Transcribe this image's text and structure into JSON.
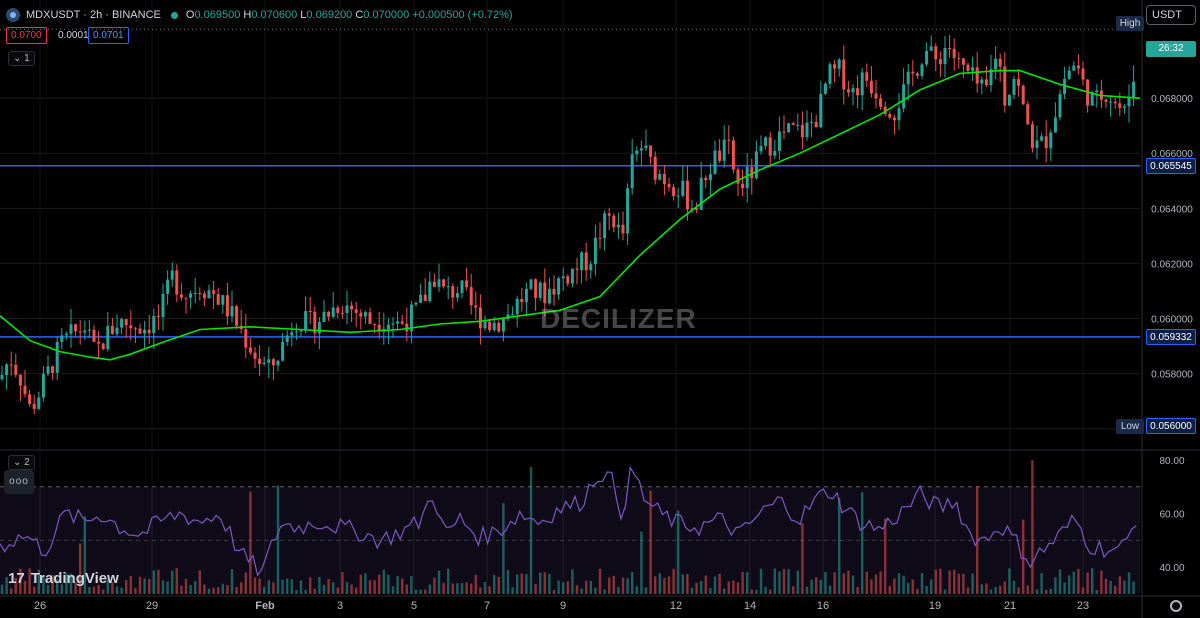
{
  "header": {
    "title": "MDXUSDT · 2h · BINANCE",
    "ohlc": {
      "o_label": "O",
      "o": "0.069500",
      "h_label": "H",
      "h": "0.070600",
      "l_label": "L",
      "l": "0.069200",
      "c_label": "C",
      "c": "0.070000",
      "change": "+0.000500 (+0.72%)"
    },
    "bid": "0.0700",
    "spread": "0.0001",
    "ask": "0.0701",
    "main_pane_badge": "1",
    "rsi_pane_badge": "2",
    "more_label": "ooo"
  },
  "toolbar": {
    "currency": "USDT"
  },
  "axis": {
    "high_label": "High",
    "low_label": "Low",
    "low_value": "0.056000",
    "countdown": "26:32",
    "level_upper": "0.065545",
    "level_lower": "0.059332"
  },
  "watermark": "DECILIZER",
  "branding": {
    "name": "TradingView",
    "mark": "17"
  },
  "colors": {
    "up": "#26a69a",
    "down": "#ef5350",
    "ma": "#00e600",
    "rsi": "#7e57c2",
    "level": "#2962ff",
    "background": "#000000"
  },
  "chart_data": {
    "type": "candlestick",
    "symbol": "MDXUSDT",
    "interval": "2h",
    "price_axis": {
      "ticks": [
        "0.068000",
        "0.066000",
        "0.064000",
        "0.062000",
        "0.060000",
        "0.058000",
        "0.056000"
      ],
      "range": [
        0.0553,
        0.0712
      ]
    },
    "x_ticks": [
      "26",
      "29",
      "Feb",
      "3",
      "5",
      "7",
      "9",
      "12",
      "14",
      "16",
      "19",
      "21",
      "23"
    ],
    "session_high": 0.0705,
    "session_low": 0.056,
    "horizontal_levels": [
      0.065545,
      0.059332
    ],
    "price_path": [
      [
        0,
        0.0578
      ],
      [
        10,
        0.0586
      ],
      [
        20,
        0.0579
      ],
      [
        30,
        0.0567
      ],
      [
        38,
        0.0572
      ],
      [
        50,
        0.0582
      ],
      [
        62,
        0.0591
      ],
      [
        72,
        0.0594
      ],
      [
        85,
        0.0597
      ],
      [
        95,
        0.0587
      ],
      [
        105,
        0.0593
      ],
      [
        118,
        0.0599
      ],
      [
        130,
        0.0598
      ],
      [
        145,
        0.0597
      ],
      [
        160,
        0.0601
      ],
      [
        172,
        0.0615
      ],
      [
        185,
        0.0609
      ],
      [
        200,
        0.0612
      ],
      [
        215,
        0.0609
      ],
      [
        232,
        0.0601
      ],
      [
        245,
        0.0593
      ],
      [
        258,
        0.0585
      ],
      [
        270,
        0.0581
      ],
      [
        282,
        0.059
      ],
      [
        295,
        0.06
      ],
      [
        310,
        0.0598
      ],
      [
        325,
        0.0601
      ],
      [
        340,
        0.0606
      ],
      [
        355,
        0.0603
      ],
      [
        370,
        0.0599
      ],
      [
        385,
        0.06
      ],
      [
        400,
        0.0598
      ],
      [
        415,
        0.0602
      ],
      [
        425,
        0.0608
      ],
      [
        433,
        0.0616
      ],
      [
        445,
        0.0609
      ],
      [
        460,
        0.0611
      ],
      [
        475,
        0.0602
      ],
      [
        490,
        0.0598
      ],
      [
        505,
        0.06
      ],
      [
        515,
        0.0605
      ],
      [
        530,
        0.061
      ],
      [
        545,
        0.0609
      ],
      [
        560,
        0.0614
      ],
      [
        575,
        0.0618
      ],
      [
        590,
        0.0622
      ],
      [
        602,
        0.0633
      ],
      [
        612,
        0.0638
      ],
      [
        622,
        0.0628
      ],
      [
        632,
        0.0657
      ],
      [
        642,
        0.0663
      ],
      [
        652,
        0.0655
      ],
      [
        665,
        0.0651
      ],
      [
        680,
        0.0647
      ],
      [
        695,
        0.064
      ],
      [
        705,
        0.0652
      ],
      [
        715,
        0.0658
      ],
      [
        728,
        0.0662
      ],
      [
        738,
        0.0648
      ],
      [
        750,
        0.0652
      ],
      [
        762,
        0.0661
      ],
      [
        775,
        0.0665
      ],
      [
        790,
        0.0668
      ],
      [
        805,
        0.0668
      ],
      [
        818,
        0.0674
      ],
      [
        828,
        0.0688
      ],
      [
        840,
        0.069
      ],
      [
        852,
        0.0682
      ],
      [
        865,
        0.0688
      ],
      [
        880,
        0.0681
      ],
      [
        893,
        0.0675
      ],
      [
        905,
        0.0683
      ],
      [
        915,
        0.069
      ],
      [
        925,
        0.0698
      ],
      [
        935,
        0.0693
      ],
      [
        948,
        0.07
      ],
      [
        958,
        0.0692
      ],
      [
        970,
        0.0688
      ],
      [
        985,
        0.0681
      ],
      [
        997,
        0.0698
      ],
      [
        1005,
        0.068
      ],
      [
        1015,
        0.0689
      ],
      [
        1025,
        0.0673
      ],
      [
        1035,
        0.0662
      ],
      [
        1045,
        0.0664
      ],
      [
        1055,
        0.0675
      ],
      [
        1065,
        0.0688
      ],
      [
        1075,
        0.0693
      ],
      [
        1085,
        0.0683
      ],
      [
        1095,
        0.0678
      ],
      [
        1105,
        0.0683
      ],
      [
        1115,
        0.0679
      ],
      [
        1125,
        0.0674
      ],
      [
        1133,
        0.0688
      ],
      [
        1140,
        0.07
      ]
    ],
    "moving_average_path": [
      [
        0,
        0.0601
      ],
      [
        30,
        0.0592
      ],
      [
        60,
        0.0588
      ],
      [
        90,
        0.0586
      ],
      [
        110,
        0.0585
      ],
      [
        130,
        0.0587
      ],
      [
        160,
        0.0591
      ],
      [
        200,
        0.0596
      ],
      [
        250,
        0.0597
      ],
      [
        300,
        0.0596
      ],
      [
        350,
        0.0595
      ],
      [
        400,
        0.0596
      ],
      [
        440,
        0.0598
      ],
      [
        480,
        0.0599
      ],
      [
        520,
        0.0601
      ],
      [
        560,
        0.0603
      ],
      [
        600,
        0.0608
      ],
      [
        640,
        0.0623
      ],
      [
        680,
        0.0636
      ],
      [
        720,
        0.0647
      ],
      [
        760,
        0.0654
      ],
      [
        800,
        0.066
      ],
      [
        840,
        0.0667
      ],
      [
        880,
        0.0674
      ],
      [
        920,
        0.0683
      ],
      [
        960,
        0.0689
      ],
      [
        1000,
        0.069
      ],
      [
        1020,
        0.069
      ],
      [
        1060,
        0.0685
      ],
      [
        1100,
        0.0681
      ],
      [
        1140,
        0.068
      ]
    ],
    "rsi": {
      "axis_ticks": [
        "80.00",
        "60.00",
        "40.00"
      ],
      "range": [
        30,
        80
      ],
      "bands": [
        70,
        30
      ],
      "mid": 50,
      "path": [
        [
          0,
          48
        ],
        [
          25,
          52
        ],
        [
          45,
          46
        ],
        [
          65,
          60
        ],
        [
          85,
          57
        ],
        [
          100,
          60
        ],
        [
          120,
          55
        ],
        [
          140,
          52
        ],
        [
          160,
          57
        ],
        [
          180,
          60
        ],
        [
          200,
          57
        ],
        [
          220,
          60
        ],
        [
          240,
          45
        ],
        [
          262,
          38
        ],
        [
          280,
          56
        ],
        [
          300,
          55
        ],
        [
          320,
          57
        ],
        [
          340,
          55
        ],
        [
          360,
          53
        ],
        [
          380,
          50
        ],
        [
          400,
          53
        ],
        [
          420,
          57
        ],
        [
          433,
          68
        ],
        [
          445,
          52
        ],
        [
          460,
          58
        ],
        [
          480,
          51
        ],
        [
          500,
          54
        ],
        [
          520,
          60
        ],
        [
          540,
          57
        ],
        [
          560,
          62
        ],
        [
          580,
          64
        ],
        [
          600,
          76
        ],
        [
          612,
          72
        ],
        [
          622,
          60
        ],
        [
          632,
          77
        ],
        [
          645,
          65
        ],
        [
          660,
          60
        ],
        [
          680,
          56
        ],
        [
          700,
          55
        ],
        [
          720,
          58
        ],
        [
          740,
          52
        ],
        [
          760,
          60
        ],
        [
          780,
          65
        ],
        [
          800,
          58
        ],
        [
          815,
          65
        ],
        [
          830,
          69
        ],
        [
          845,
          62
        ],
        [
          860,
          57
        ],
        [
          880,
          54
        ],
        [
          900,
          60
        ],
        [
          920,
          67
        ],
        [
          940,
          62
        ],
        [
          955,
          65
        ],
        [
          970,
          52
        ],
        [
          985,
          50
        ],
        [
          1000,
          56
        ],
        [
          1015,
          50
        ],
        [
          1030,
          42
        ],
        [
          1045,
          47
        ],
        [
          1060,
          52
        ],
        [
          1075,
          58
        ],
        [
          1090,
          48
        ],
        [
          1105,
          47
        ],
        [
          1120,
          46
        ],
        [
          1130,
          52
        ],
        [
          1140,
          63
        ]
      ]
    }
  }
}
